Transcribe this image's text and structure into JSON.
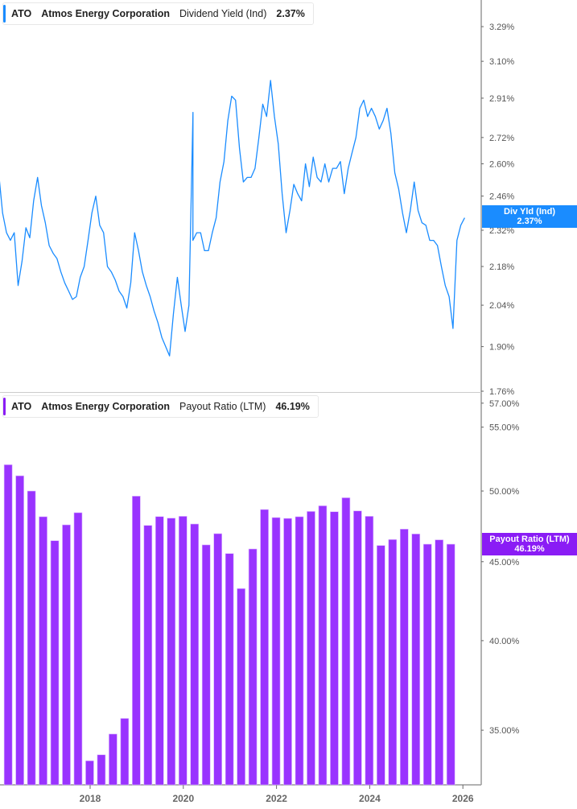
{
  "top_header": {
    "ticker": "ATO",
    "company": "Atmos Energy Corporation",
    "metric": "Dividend Yield (Ind)",
    "value": "2.37%"
  },
  "bottom_header": {
    "ticker": "ATO",
    "company": "Atmos Energy Corporation",
    "metric": "Payout Ratio (LTM)",
    "value": "46.19%"
  },
  "top_tag": {
    "label": "Div Yld (Ind)",
    "value": "2.37%"
  },
  "bottom_tag": {
    "label": "Payout Ratio (LTM)",
    "value": "46.19%"
  },
  "colors": {
    "yield_line": "#1a8cff",
    "payout_bar": "#9933ff",
    "payout_tag": "#8a1cf5",
    "axis": "#999999",
    "tick_text": "#555555"
  },
  "chart_data": [
    {
      "type": "line",
      "series": [
        {
          "name": "Dividend Yield (Ind)"
        }
      ],
      "y_scale": "log",
      "ylim": [
        1.76,
        3.4
      ],
      "ytick_labels": [
        "3.29%",
        "3.10%",
        "2.91%",
        "2.72%",
        "2.60%",
        "2.46%",
        "2.32%",
        "2.18%",
        "2.04%",
        "1.90%",
        "1.76%"
      ],
      "yticks": [
        3.29,
        3.1,
        2.91,
        2.72,
        2.6,
        2.46,
        2.32,
        2.18,
        2.04,
        1.9,
        1.76
      ],
      "x": [
        "2016-01",
        "2016-02",
        "2016-03",
        "2016-04",
        "2016-05",
        "2016-06",
        "2016-07",
        "2016-08",
        "2016-09",
        "2016-10",
        "2016-11",
        "2016-12",
        "2017-01",
        "2017-02",
        "2017-03",
        "2017-04",
        "2017-05",
        "2017-06",
        "2017-07",
        "2017-08",
        "2017-09",
        "2017-10",
        "2017-11",
        "2017-12",
        "2018-01",
        "2018-02",
        "2018-03",
        "2018-04",
        "2018-05",
        "2018-06",
        "2018-07",
        "2018-08",
        "2018-09",
        "2018-10",
        "2018-11",
        "2018-12",
        "2019-01",
        "2019-02",
        "2019-03",
        "2019-04",
        "2019-05",
        "2019-06",
        "2019-07",
        "2019-08",
        "2019-09",
        "2019-10",
        "2019-11",
        "2019-12",
        "2020-01",
        "2020-02",
        "2020-03-16",
        "2020-03",
        "2020-04",
        "2020-05",
        "2020-06",
        "2020-07",
        "2020-08",
        "2020-09",
        "2020-10",
        "2020-11",
        "2020-12",
        "2021-01",
        "2021-02",
        "2021-03",
        "2021-04",
        "2021-05",
        "2021-06",
        "2021-07",
        "2021-08",
        "2021-09",
        "2021-10",
        "2021-11",
        "2021-12",
        "2022-01",
        "2022-02",
        "2022-03",
        "2022-04",
        "2022-05",
        "2022-06",
        "2022-07",
        "2022-08",
        "2022-09",
        "2022-10",
        "2022-11",
        "2022-12",
        "2023-01",
        "2023-02",
        "2023-03",
        "2023-04",
        "2023-05",
        "2023-06",
        "2023-07",
        "2023-08",
        "2023-09",
        "2023-10",
        "2023-11",
        "2023-12",
        "2024-01",
        "2024-02",
        "2024-03",
        "2024-04",
        "2024-05",
        "2024-06",
        "2024-07",
        "2024-08",
        "2024-09",
        "2024-10",
        "2024-11",
        "2024-12",
        "2025-01",
        "2025-02",
        "2025-03",
        "2025-04",
        "2025-05",
        "2025-06",
        "2025-07",
        "2025-08",
        "2025-09",
        "2025-10",
        "2025-11",
        "2025-12",
        "2026-01"
      ],
      "values": [
        2.56,
        2.39,
        2.31,
        2.28,
        2.31,
        2.11,
        2.2,
        2.33,
        2.29,
        2.44,
        2.54,
        2.42,
        2.35,
        2.26,
        2.23,
        2.21,
        2.16,
        2.12,
        2.09,
        2.06,
        2.07,
        2.14,
        2.18,
        2.28,
        2.39,
        2.46,
        2.34,
        2.31,
        2.18,
        2.16,
        2.13,
        2.09,
        2.07,
        2.03,
        2.12,
        2.31,
        2.24,
        2.16,
        2.11,
        2.07,
        2.02,
        1.98,
        1.93,
        1.9,
        1.87,
        2.01,
        2.14,
        2.04,
        1.95,
        2.04,
        2.84,
        2.28,
        2.31,
        2.31,
        2.24,
        2.24,
        2.31,
        2.37,
        2.52,
        2.61,
        2.8,
        2.92,
        2.9,
        2.67,
        2.52,
        2.54,
        2.54,
        2.58,
        2.72,
        2.88,
        2.82,
        3.0,
        2.82,
        2.69,
        2.47,
        2.31,
        2.4,
        2.51,
        2.47,
        2.44,
        2.6,
        2.5,
        2.63,
        2.54,
        2.52,
        2.6,
        2.52,
        2.58,
        2.58,
        2.61,
        2.47,
        2.58,
        2.65,
        2.72,
        2.86,
        2.9,
        2.82,
        2.86,
        2.82,
        2.76,
        2.8,
        2.86,
        2.74,
        2.56,
        2.49,
        2.39,
        2.31,
        2.4,
        2.52,
        2.4,
        2.35,
        2.34,
        2.28,
        2.28,
        2.26,
        2.18,
        2.11,
        2.07,
        1.96,
        2.28,
        2.34,
        2.37
      ],
      "last_value": 2.37
    },
    {
      "type": "bar",
      "series": [
        {
          "name": "Payout Ratio (LTM)"
        }
      ],
      "y_scale": "log",
      "ylim": [
        32.3,
        57.3
      ],
      "ytick_labels": [
        "57.00%",
        "55.00%",
        "50.00%",
        "45.00%",
        "40.00%",
        "35.00%"
      ],
      "yticks": [
        57,
        55,
        50,
        45,
        40,
        35
      ],
      "xtick_labels": [
        "2018",
        "2020",
        "2022",
        "2024",
        "2026"
      ],
      "categories": [
        "2016-03",
        "2016-06",
        "2016-09",
        "2016-12",
        "2017-03",
        "2017-06",
        "2017-09",
        "2017-12",
        "2018-03",
        "2018-06",
        "2018-09",
        "2018-12",
        "2019-03",
        "2019-06",
        "2019-09",
        "2019-12",
        "2020-03",
        "2020-06",
        "2020-09",
        "2020-12",
        "2021-03",
        "2021-06",
        "2021-09",
        "2021-12",
        "2022-03",
        "2022-06",
        "2022-09",
        "2022-12",
        "2023-03",
        "2023-06",
        "2023-09",
        "2023-12",
        "2024-03",
        "2024-06",
        "2024-09",
        "2024-12",
        "2025-03",
        "2025-06",
        "2025-09"
      ],
      "values": [
        52.0,
        51.15,
        50.0,
        48.12,
        46.43,
        47.54,
        48.41,
        33.44,
        33.74,
        34.8,
        35.62,
        49.62,
        47.5,
        48.13,
        48.02,
        48.15,
        47.6,
        46.14,
        46.92,
        45.55,
        43.23,
        45.86,
        48.64,
        48.06,
        48.0,
        48.12,
        48.5,
        48.91,
        48.48,
        49.5,
        48.54,
        48.15,
        46.1,
        46.51,
        47.24,
        46.9,
        46.19,
        46.49,
        46.19
      ],
      "last_value": 46.19
    }
  ]
}
